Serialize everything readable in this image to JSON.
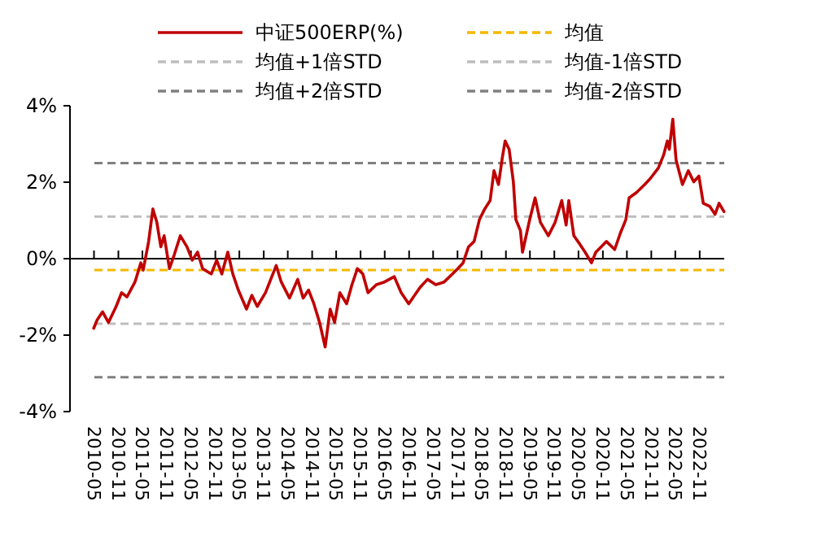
{
  "chart_data": {
    "type": "line",
    "legend": "top",
    "line_style": "solid",
    "marker": "none",
    "xlim": [
      "2009-11-01",
      "2023-05-05"
    ],
    "xticks": [
      "2010-05",
      "2010-11",
      "2011-05",
      "2011-11",
      "2012-05",
      "2012-11",
      "2013-05",
      "2013-11",
      "2014-05",
      "2014-11",
      "2015-05",
      "2015-11",
      "2016-05",
      "2016-11",
      "2017-05",
      "2017-11",
      "2018-05",
      "2018-11",
      "2019-05",
      "2019-11",
      "2020-05",
      "2020-11",
      "2021-05",
      "2021-11",
      "2022-05",
      "2022-11"
    ],
    "ylim": [
      -4,
      4
    ],
    "yticks": [
      {
        "value": -4,
        "label": "-4%"
      },
      {
        "value": -2,
        "label": "-2%"
      },
      {
        "value": 0,
        "label": "0%"
      },
      {
        "value": 2,
        "label": "2%"
      },
      {
        "value": 4,
        "label": "4%"
      }
    ],
    "ref_lines": [
      {
        "axis": "y",
        "value": -0.3,
        "label": "均值",
        "color": "#f5b800",
        "line_style": "dashed"
      },
      {
        "axis": "y",
        "value": 1.1,
        "label": "均值+1倍STD",
        "color": "#bdbdbd",
        "line_style": "dashed"
      },
      {
        "axis": "y",
        "value": -1.7,
        "label": "均值-1倍STD",
        "color": "#bdbdbd",
        "line_style": "dashed"
      },
      {
        "axis": "y",
        "value": 2.5,
        "label": "均值+2倍STD",
        "color": "#808080",
        "line_style": "dashed"
      },
      {
        "axis": "y",
        "value": -3.1,
        "label": "均值-2倍STD",
        "color": "#808080",
        "line_style": "dashed"
      }
    ],
    "series": [
      {
        "name": "中证500ERP(%)",
        "color": "#c00000",
        "x": [
          "2010-04-29",
          "2010-05-25",
          "2010-07-05",
          "2010-08-18",
          "2010-10-15",
          "2010-11-25",
          "2011-01-05",
          "2011-03-06",
          "2011-04-19",
          "2011-05-07",
          "2011-06-17",
          "2011-07-19",
          "2011-08-18",
          "2011-09-17",
          "2011-10-12",
          "2011-11-21",
          "2011-12-27",
          "2012-02-11",
          "2012-04-01",
          "2012-05-11",
          "2012-06-20",
          "2012-07-28",
          "2012-10-01",
          "2012-11-11",
          "2012-12-20",
          "2013-02-03",
          "2013-03-13",
          "2013-04-23",
          "2013-06-24",
          "2013-08-03",
          "2013-09-13",
          "2013-11-14",
          "2013-12-24",
          "2014-02-03",
          "2014-03-13",
          "2014-05-14",
          "2014-07-15",
          "2014-08-25",
          "2014-10-05",
          "2014-11-14",
          "2014-12-27",
          "2015-02-07",
          "2015-03-17",
          "2015-04-19",
          "2015-05-29",
          "2015-07-19",
          "2015-08-28",
          "2015-10-08",
          "2015-11-18",
          "2015-12-27",
          "2016-02-28",
          "2016-04-29",
          "2016-07-12",
          "2016-09-02",
          "2016-10-29",
          "2017-01-23",
          "2017-03-20",
          "2017-05-21",
          "2017-07-23",
          "2017-09-24",
          "2017-11-03",
          "2017-12-13",
          "2018-01-23",
          "2018-03-06",
          "2018-04-15",
          "2018-05-25",
          "2018-07-05",
          "2018-08-03",
          "2018-09-06",
          "2018-10-05",
          "2018-10-26",
          "2018-11-25",
          "2018-12-27",
          "2019-01-15",
          "2019-02-18",
          "2019-03-06",
          "2019-04-29",
          "2019-06-09",
          "2019-07-19",
          "2019-09-17",
          "2019-11-07",
          "2019-12-27",
          "2020-01-29",
          "2020-02-18",
          "2020-03-27",
          "2020-05-11",
          "2020-06-20",
          "2020-08-07",
          "2020-09-09",
          "2020-10-19",
          "2020-11-28",
          "2021-01-29",
          "2021-03-13",
          "2021-04-23",
          "2021-05-18",
          "2021-07-12",
          "2021-09-13",
          "2021-10-23",
          "2021-12-24",
          "2022-02-03",
          "2022-03-02",
          "2022-03-17",
          "2022-04-12",
          "2022-05-07",
          "2022-06-24",
          "2022-08-07",
          "2022-09-17",
          "2022-10-26",
          "2022-11-28",
          "2023-01-15",
          "2023-02-25",
          "2023-03-27",
          "2023-05-03"
        ],
        "values": [
          -1.82,
          -1.6,
          -1.39,
          -1.67,
          -1.25,
          -0.89,
          -1.0,
          -0.61,
          -0.11,
          -0.3,
          0.45,
          1.3,
          0.95,
          0.31,
          0.6,
          -0.26,
          0.1,
          0.6,
          0.31,
          -0.04,
          0.17,
          -0.26,
          -0.4,
          -0.04,
          -0.4,
          0.17,
          -0.4,
          -0.82,
          -1.32,
          -0.96,
          -1.25,
          -0.89,
          -0.54,
          -0.18,
          -0.61,
          -1.03,
          -0.54,
          -1.03,
          -0.82,
          -1.18,
          -1.67,
          -2.31,
          -1.32,
          -1.67,
          -0.89,
          -1.18,
          -0.68,
          -0.26,
          -0.4,
          -0.89,
          -0.68,
          -0.61,
          -0.47,
          -0.89,
          -1.18,
          -0.75,
          -0.54,
          -0.68,
          -0.61,
          -0.4,
          -0.26,
          -0.11,
          0.31,
          0.45,
          1.02,
          1.3,
          1.52,
          2.3,
          1.94,
          2.65,
          3.08,
          2.86,
          2.01,
          1.02,
          0.74,
          0.17,
          1.02,
          1.59,
          0.95,
          0.6,
          0.95,
          1.52,
          0.88,
          1.52,
          0.6,
          0.38,
          0.17,
          -0.11,
          0.17,
          0.31,
          0.45,
          0.24,
          0.67,
          1.02,
          1.59,
          1.73,
          1.94,
          2.09,
          2.37,
          2.72,
          3.08,
          2.86,
          3.65,
          2.58,
          1.94,
          2.3,
          2.01,
          2.16,
          1.45,
          1.37,
          1.16,
          1.45,
          1.23
        ]
      }
    ]
  }
}
